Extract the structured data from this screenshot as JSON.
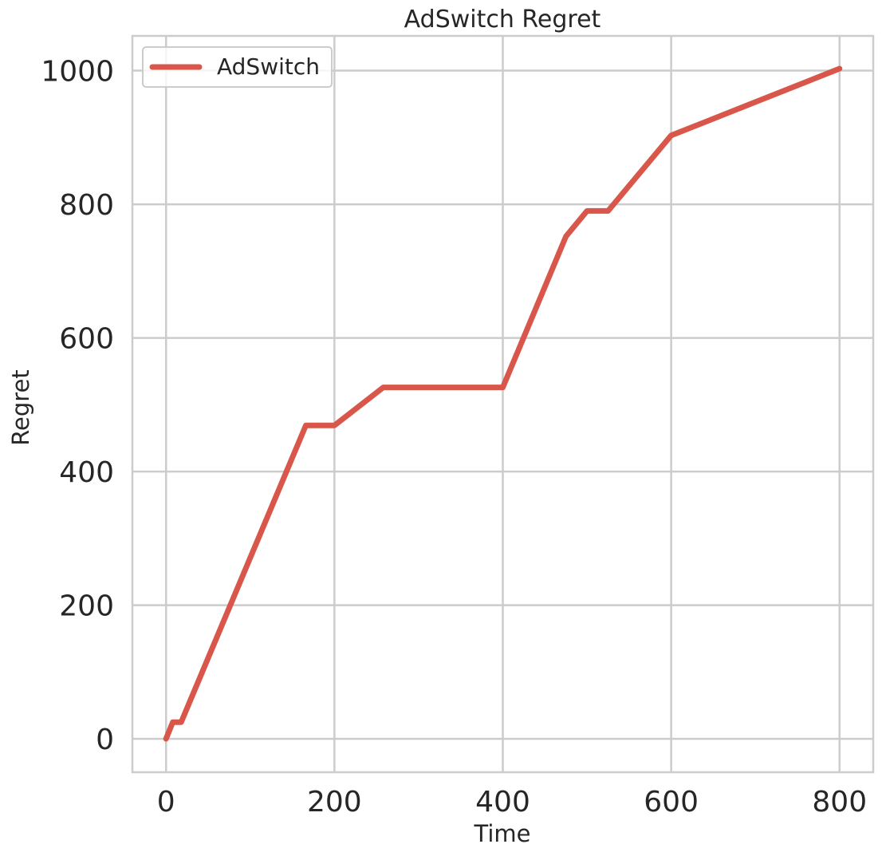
{
  "chart_data": {
    "type": "line",
    "title": "AdSwitch Regret",
    "xlabel": "Time",
    "ylabel": "Regret",
    "xlim": [
      -40,
      840
    ],
    "ylim": [
      -50,
      1052
    ],
    "xticks": [
      0,
      200,
      400,
      600,
      800
    ],
    "yticks": [
      0,
      200,
      400,
      600,
      800,
      1000
    ],
    "grid": true,
    "legend_position": "top-left",
    "series": [
      {
        "name": "AdSwitch",
        "color": "#d9574a",
        "x": [
          0,
          8,
          18,
          166,
          200,
          258,
          400,
          475,
          500,
          525,
          600,
          800
        ],
        "y": [
          0,
          25,
          25,
          469,
          469,
          526,
          526,
          752,
          790,
          790,
          903,
          1003
        ]
      }
    ]
  }
}
